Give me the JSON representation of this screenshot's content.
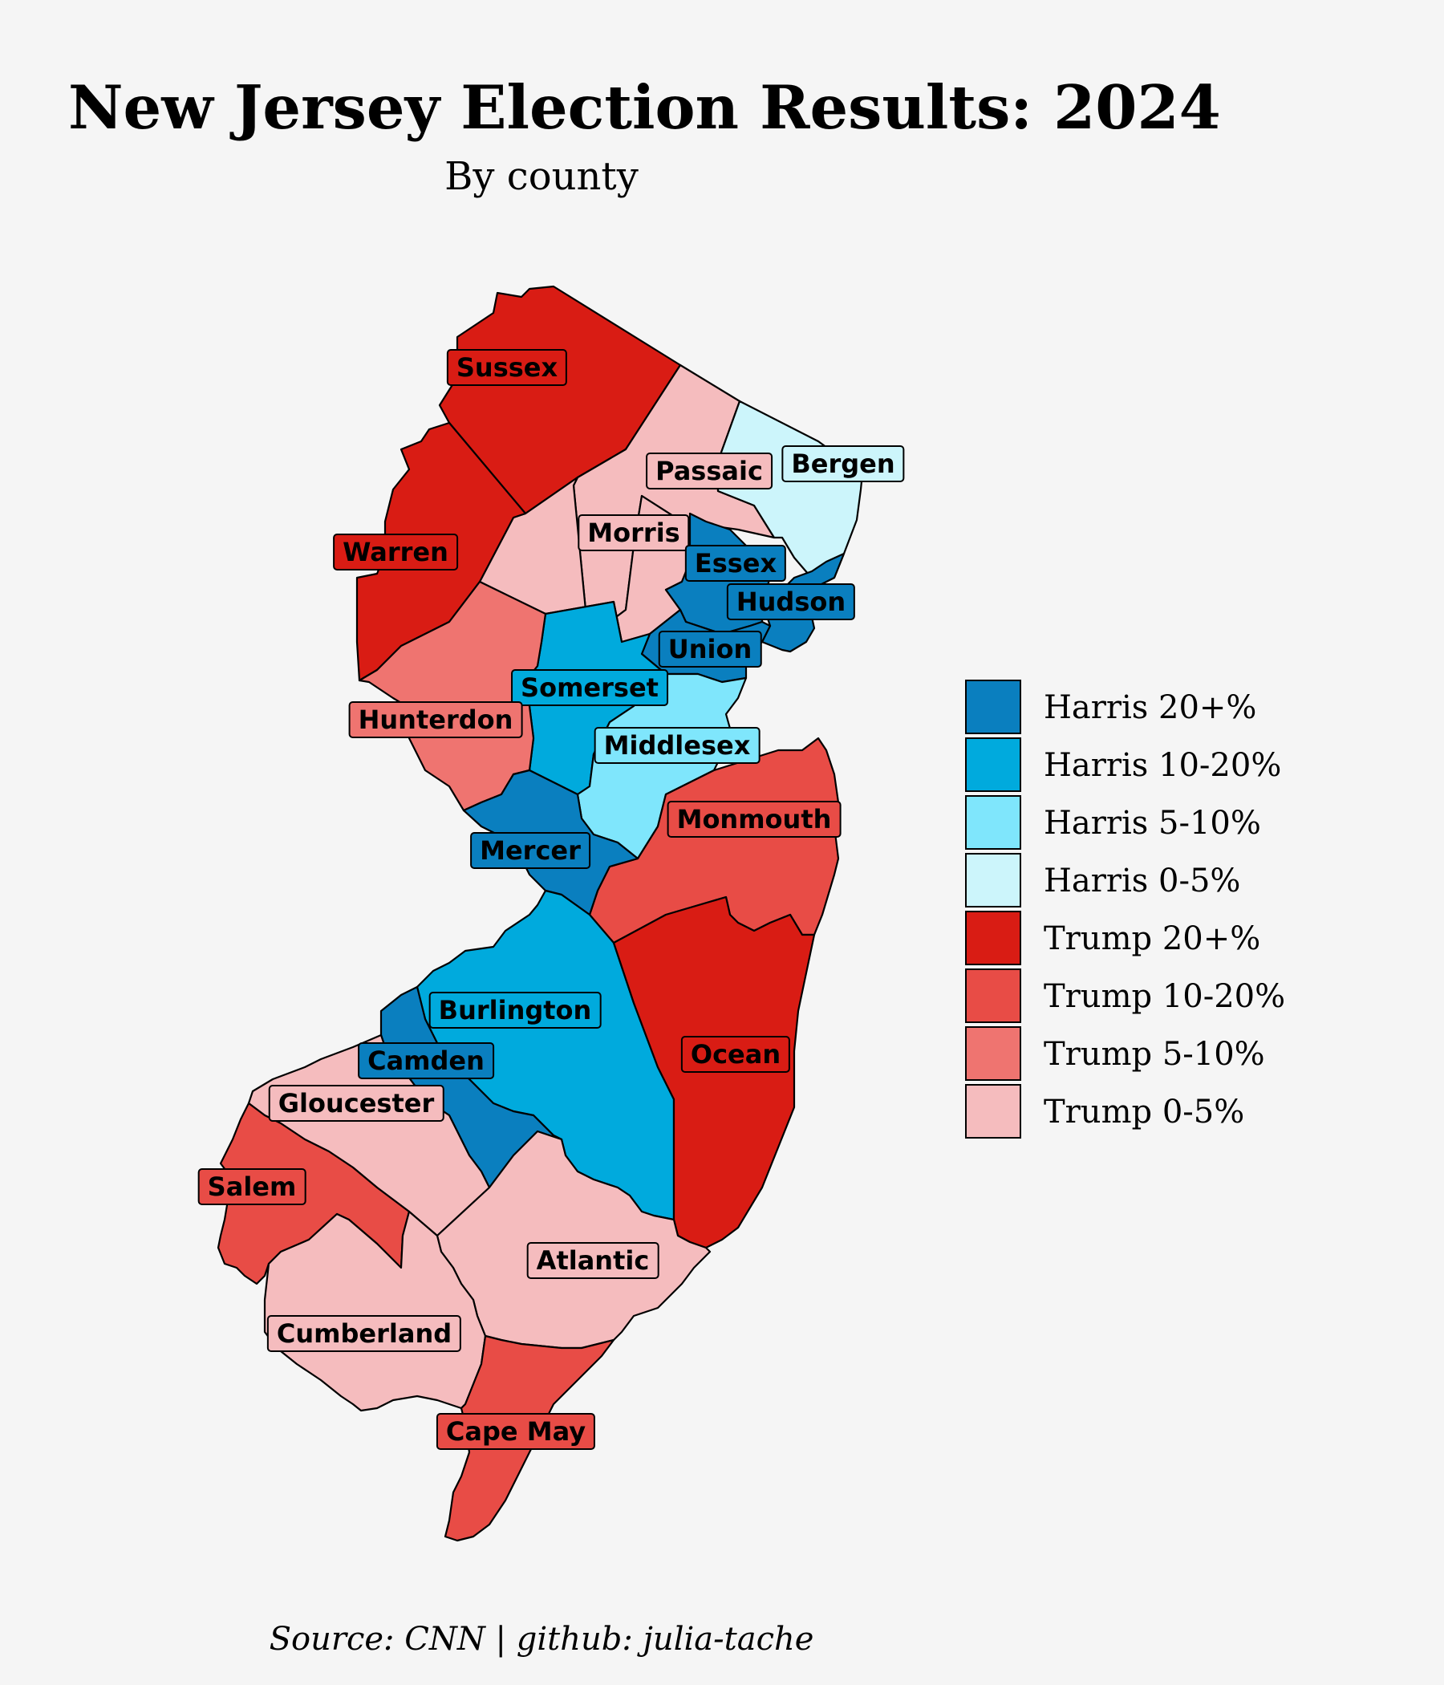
{
  "title": "New Jersey Election Results: 2024",
  "subtitle": "By county",
  "source": "Source: CNN | github: julia-tache",
  "colors": {
    "background": "#f5f5f5",
    "harris_20_plus": "#0a7fbf",
    "harris_10_20": "#00aadd",
    "harris_5_10": "#7fe6fc",
    "harris_0_5": "#ccf5fb",
    "trump_20_plus": "#d91c14",
    "trump_10_20": "#e84c46",
    "trump_5_10": "#ef7470",
    "trump_0_5": "#f5bcbe"
  },
  "legend": [
    {
      "label": "Harris 20+%",
      "category": "harris_20_plus"
    },
    {
      "label": "Harris 10-20%",
      "category": "harris_10_20"
    },
    {
      "label": "Harris 5-10%",
      "category": "harris_5_10"
    },
    {
      "label": "Harris 0-5%",
      "category": "harris_0_5"
    },
    {
      "label": "Trump 20+%",
      "category": "trump_20_plus"
    },
    {
      "label": "Trump 10-20%",
      "category": "trump_10_20"
    },
    {
      "label": "Trump 5-10%",
      "category": "trump_5_10"
    },
    {
      "label": "Trump 0-5%",
      "category": "trump_0_5"
    }
  ],
  "counties": [
    {
      "name": "Sussex",
      "category": "trump_20_plus"
    },
    {
      "name": "Passaic",
      "category": "trump_0_5"
    },
    {
      "name": "Bergen",
      "category": "harris_0_5"
    },
    {
      "name": "Morris",
      "category": "trump_0_5"
    },
    {
      "name": "Warren",
      "category": "trump_20_plus"
    },
    {
      "name": "Essex",
      "category": "harris_20_plus"
    },
    {
      "name": "Hudson",
      "category": "harris_20_plus"
    },
    {
      "name": "Union",
      "category": "harris_20_plus"
    },
    {
      "name": "Somerset",
      "category": "harris_10_20"
    },
    {
      "name": "Hunterdon",
      "category": "trump_5_10"
    },
    {
      "name": "Middlesex",
      "category": "harris_5_10"
    },
    {
      "name": "Monmouth",
      "category": "trump_10_20"
    },
    {
      "name": "Mercer",
      "category": "harris_20_plus"
    },
    {
      "name": "Burlington",
      "category": "harris_10_20"
    },
    {
      "name": "Ocean",
      "category": "trump_20_plus"
    },
    {
      "name": "Camden",
      "category": "harris_20_plus"
    },
    {
      "name": "Gloucester",
      "category": "trump_0_5"
    },
    {
      "name": "Salem",
      "category": "trump_10_20"
    },
    {
      "name": "Atlantic",
      "category": "trump_0_5"
    },
    {
      "name": "Cumberland",
      "category": "trump_0_5"
    },
    {
      "name": "Cape May",
      "category": "trump_10_20"
    }
  ]
}
